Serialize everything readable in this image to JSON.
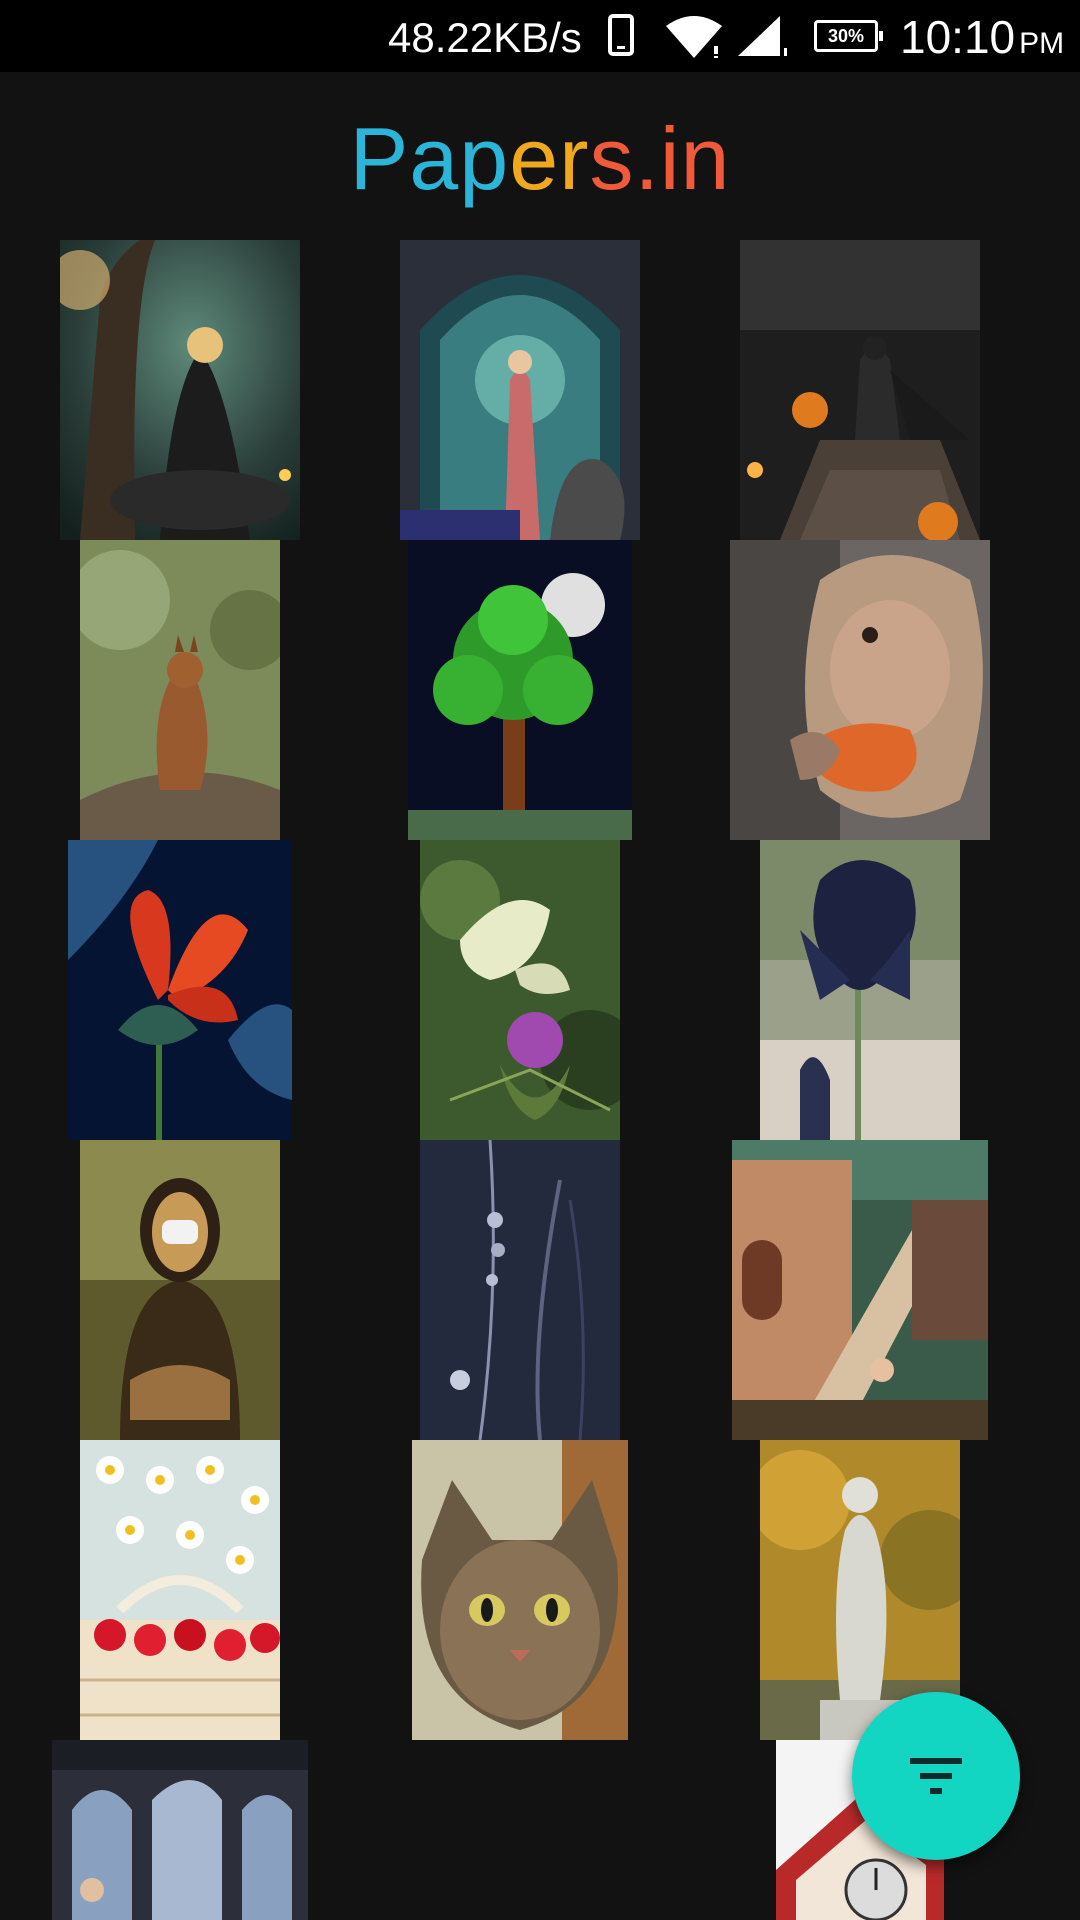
{
  "status_bar": {
    "network_speed": "48.22KB/s",
    "battery": "30%",
    "time": "10:10",
    "ampm": "PM",
    "icons": [
      "phone-icon",
      "wifi-icon",
      "signal-icon",
      "battery-icon"
    ]
  },
  "app": {
    "logo_letters": [
      {
        "char": "P",
        "color": "#2bb5d8"
      },
      {
        "char": "a",
        "color": "#2bb5d8"
      },
      {
        "char": "p",
        "color": "#2bb5d8"
      },
      {
        "char": "e",
        "color": "#f0a81e"
      },
      {
        "char": "r",
        "color": "#f0a81e"
      },
      {
        "char": "s",
        "color": "#ee5a3a"
      },
      {
        "char": ".",
        "color": "#ee5a3a"
      },
      {
        "char": "i",
        "color": "#ee5a3a"
      },
      {
        "char": "n",
        "color": "#ee5a3a"
      }
    ]
  },
  "wallpapers": [
    "fantasy-woman-in-forest",
    "woman-in-gothic-arch-with-gargoyle",
    "batman-on-stairs-with-pumpkins",
    "squirrel-on-log",
    "green-tree-with-full-moon",
    "monkey-eating-carrot",
    "red-flower-on-dark-blue",
    "butterfly-on-thistle",
    "dark-blue-iris-flower",
    "mona-lisa-with-mask",
    "dark-grass-blades",
    "staircase-building-fantasy",
    "daisies-and-strawberries-basket",
    "tabby-cat-face",
    "marble-statue-autumn",
    "gothic-window-scene",
    "red-clock-tower"
  ],
  "fab": {
    "icon": "filter-icon",
    "color": "#12d6c2"
  }
}
